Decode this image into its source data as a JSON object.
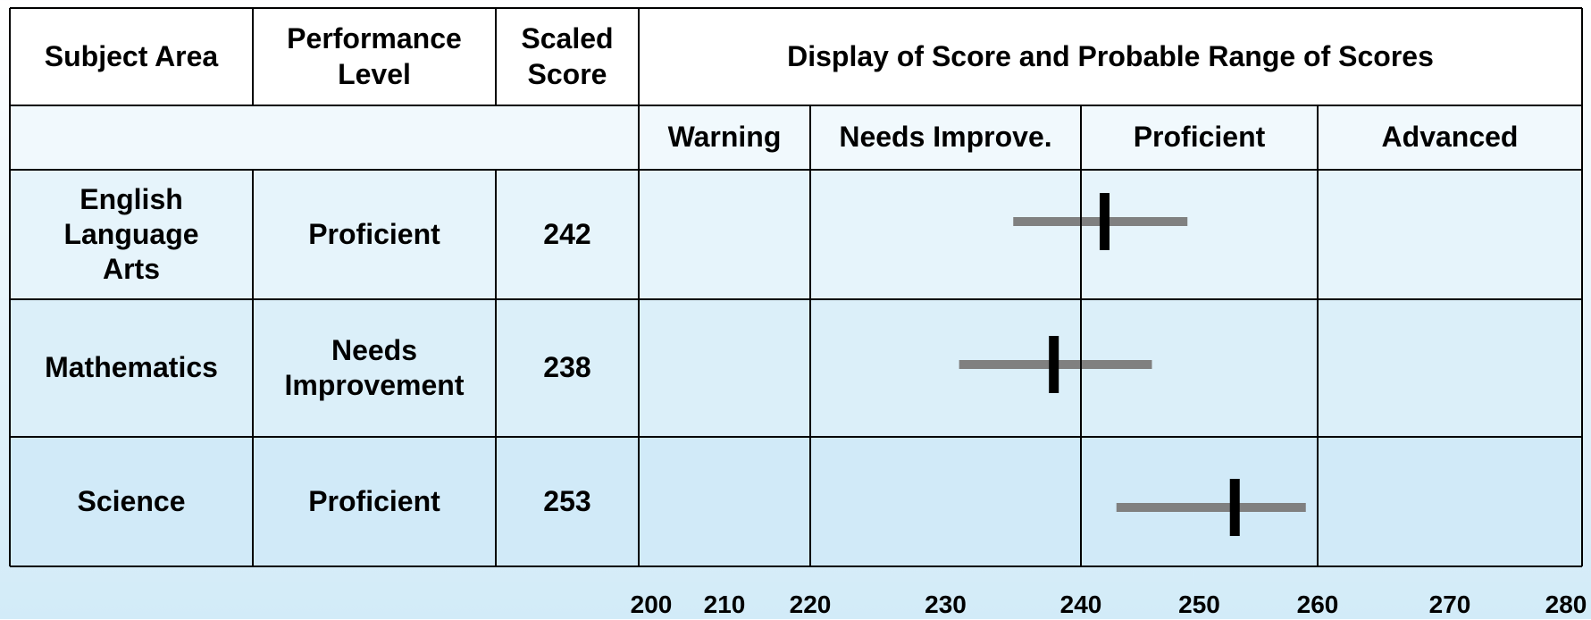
{
  "table": {
    "headers": {
      "subject": "Subject Area",
      "level": "Performance\n      Level",
      "score": "Scaled\nScore",
      "display": "Display of Score and Probable Range of Scores"
    },
    "bands": [
      {
        "label": "Warning",
        "from": 200,
        "to": 220
      },
      {
        "label": "Needs Improve.",
        "from": 220,
        "to": 240
      },
      {
        "label": "Proficient",
        "from": 240,
        "to": 260
      },
      {
        "label": "Advanced",
        "from": 260,
        "to": 280
      }
    ],
    "rows": [
      {
        "subject": "English\nLanguage\n      Arts",
        "level": "Proficient",
        "score": "242"
      },
      {
        "subject": "Mathematics",
        "level": "Needs\nImprovement",
        "score": "238"
      },
      {
        "subject": "Science",
        "level": "Proficient",
        "score": "253"
      }
    ]
  },
  "chart_data": {
    "type": "scatter",
    "title": "Display of Score and Probable Range of Scores",
    "categories": [
      "English Language Arts",
      "Mathematics",
      "Science"
    ],
    "series": [
      {
        "values": [
          242,
          238,
          253
        ],
        "range_low": [
          235,
          231,
          243
        ],
        "range_high": [
          249,
          246,
          259
        ]
      }
    ],
    "x_ticks": [
      200,
      210,
      220,
      230,
      240,
      250,
      260,
      270,
      280
    ],
    "xlim": [
      200,
      280
    ],
    "colors": {
      "range_bar": "#808080",
      "score_marker": "#000000"
    }
  }
}
